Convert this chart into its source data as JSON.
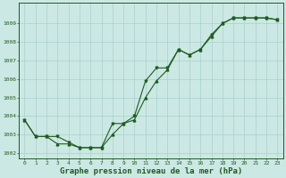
{
  "line1_x": [
    0,
    1,
    2,
    3,
    4,
    5,
    6,
    7,
    8,
    9,
    10,
    11,
    12,
    13,
    14,
    15,
    16,
    17,
    18,
    19,
    20,
    21,
    22,
    23
  ],
  "line1_y": [
    1003.8,
    1002.9,
    1002.9,
    1002.5,
    1002.5,
    1002.3,
    1002.3,
    1002.3,
    1003.0,
    1003.6,
    1003.8,
    1005.0,
    1005.9,
    1006.5,
    1007.6,
    1007.3,
    1007.6,
    1008.3,
    1009.0,
    1009.3,
    1009.3,
    1009.3,
    1009.3,
    1009.2
  ],
  "line2_x": [
    0,
    1,
    2,
    3,
    4,
    5,
    6,
    7,
    8,
    9,
    10,
    11,
    12,
    13,
    14,
    15,
    16,
    17,
    18,
    19,
    20,
    21,
    22,
    23
  ],
  "line2_y": [
    1003.8,
    1002.9,
    1002.9,
    1002.9,
    1002.6,
    1002.3,
    1002.3,
    1002.3,
    1003.6,
    1003.6,
    1004.0,
    1005.9,
    1006.6,
    1006.6,
    1007.6,
    1007.3,
    1007.6,
    1008.4,
    1009.0,
    1009.3,
    1009.3,
    1009.3,
    1009.3,
    1009.2
  ],
  "bg_color": "#cce8e4",
  "line_color": "#1e5c1e",
  "grid_color": "#a8d0cc",
  "ylabel_ticks": [
    1002,
    1003,
    1004,
    1005,
    1006,
    1007,
    1008,
    1009
  ],
  "xlabel_ticks": [
    0,
    1,
    2,
    3,
    4,
    5,
    6,
    7,
    8,
    9,
    10,
    11,
    12,
    13,
    14,
    15,
    16,
    17,
    18,
    19,
    20,
    21,
    22,
    23
  ],
  "xlabel": "Graphe pression niveau de la mer (hPa)",
  "ylim": [
    1001.7,
    1010.1
  ],
  "xlim": [
    -0.5,
    23.5
  ],
  "tick_fontsize": 4.5,
  "xlabel_fontsize": 6.5
}
